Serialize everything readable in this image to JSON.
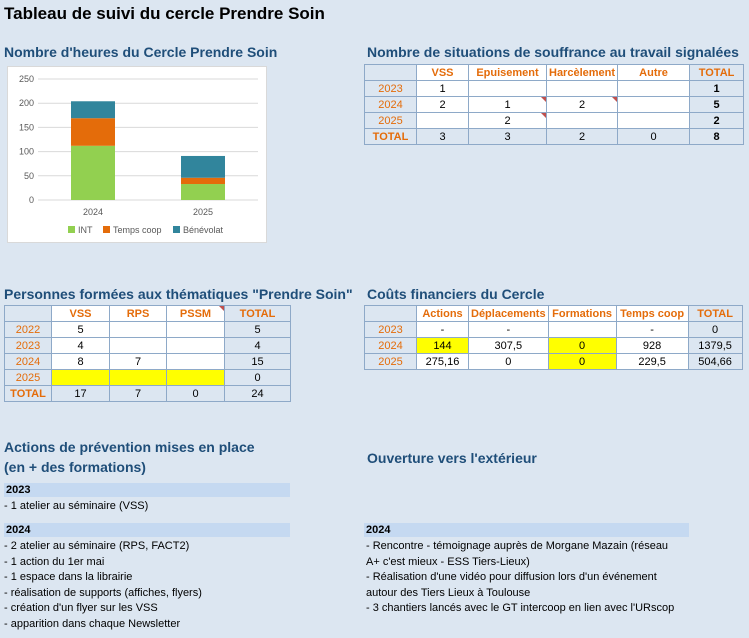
{
  "title": "Tableau de suivi du cercle Prendre Soin",
  "chart_section": {
    "title": "Nombre d'heures du Cercle Prendre Soin"
  },
  "chart_data": {
    "type": "bar",
    "stacked": true,
    "categories": [
      "2024",
      "2025"
    ],
    "series": [
      {
        "name": "INT",
        "values": [
          112,
          33
        ],
        "color": "#92d050"
      },
      {
        "name": "Temps coop",
        "values": [
          57,
          13
        ],
        "color": "#e46c0a"
      },
      {
        "name": "Bénévolat",
        "values": [
          35,
          45
        ],
        "color": "#31859c"
      }
    ],
    "ylim": [
      0,
      250
    ],
    "yticks": [
      "0",
      "50",
      "100",
      "150",
      "200",
      "250"
    ],
    "legend_position": "bottom",
    "grid": true
  },
  "souffrance": {
    "title": "Nombre de situations de souffrance au travail signalées",
    "headers": [
      "VSS",
      "Epuisement",
      "Harcèlement",
      "Autre",
      "TOTAL"
    ],
    "rows": [
      {
        "year": "2023",
        "cells": [
          "1",
          "",
          "",
          "",
          "1"
        ]
      },
      {
        "year": "2024",
        "cells": [
          "2",
          "1",
          "2",
          "",
          "5"
        ]
      },
      {
        "year": "2025",
        "cells": [
          "",
          "2",
          "",
          "",
          "2"
        ]
      }
    ],
    "total": {
      "label": "TOTAL",
      "cells": [
        "3",
        "3",
        "2",
        "0",
        "8"
      ]
    }
  },
  "formees": {
    "title": "Personnes formées aux thématiques \"Prendre Soin\"",
    "headers": [
      "VSS",
      "RPS",
      "PSSM",
      "TOTAL"
    ],
    "rows": [
      {
        "year": "2022",
        "cells": [
          "5",
          "",
          "",
          "5"
        ]
      },
      {
        "year": "2023",
        "cells": [
          "4",
          "",
          "",
          "4"
        ]
      },
      {
        "year": "2024",
        "cells": [
          "8",
          "7",
          "",
          "15"
        ]
      },
      {
        "year": "2025",
        "cells": [
          "",
          "",
          "",
          "0"
        ]
      }
    ],
    "total": {
      "label": "TOTAL",
      "cells": [
        "17",
        "7",
        "0",
        "24"
      ]
    }
  },
  "couts": {
    "title": "Coûts financiers du Cercle",
    "headers": [
      "Actions",
      "Déplacements",
      "Formations",
      "Temps coop",
      "TOTAL"
    ],
    "rows": [
      {
        "year": "2023",
        "cells": [
          "-",
          "-",
          "",
          "-",
          "0"
        ]
      },
      {
        "year": "2024",
        "cells": [
          "144",
          "307,5",
          "0",
          "928",
          "1379,5"
        ]
      },
      {
        "year": "2025",
        "cells": [
          "275,16",
          "0",
          "0",
          "229,5",
          "504,66"
        ]
      }
    ]
  },
  "prevention": {
    "title_line1": "Actions de prévention mises en place",
    "title_line2": "(en + des formations)",
    "year1": "2023",
    "items1": [
      "- 1 atelier au séminaire (VSS)"
    ],
    "year2": "2024",
    "items2": [
      "- 2 atelier au séminaire (RPS, FACT2)",
      "- 1 action du 1er mai",
      "- 1 espace dans la librairie",
      "- réalisation de supports (affiches, flyers)",
      "- création d'un flyer sur les VSS",
      "- apparition dans chaque Newsletter"
    ]
  },
  "ouverture": {
    "title": "Ouverture vers l'extérieur",
    "year": "2024",
    "items": [
      "- Rencontre - témoignage auprès de Morgane Mazain (réseau",
      "A+ c'est mieux - ESS Tiers-Lieux)",
      "- Réalisation d'une vidéo pour diffusion lors d'un événement",
      "autour des Tiers Lieux à Toulouse",
      "- 3 chantiers lancés avec le GT intercoop en lien avec l'URscop"
    ]
  }
}
